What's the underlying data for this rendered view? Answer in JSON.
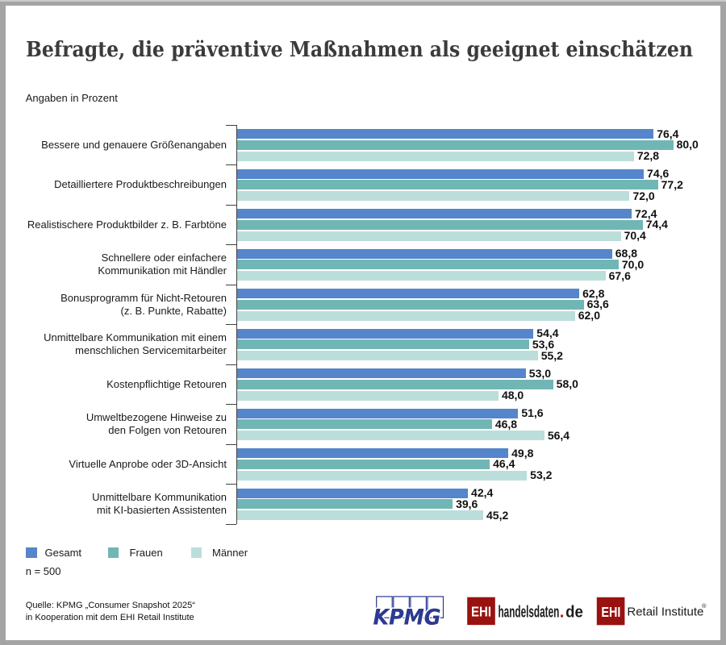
{
  "title": "Befragte, die präventive Maßnahmen als geeignet einschätzen",
  "subtitle": "Angaben in Prozent",
  "n_label": "n = 500",
  "source_line1": "Quelle: KPMG „Consumer Snapshot 2025“",
  "source_line2": "in Kooperation mit dem EHI Retail Institute",
  "colors": {
    "gesamt": "#5585cb",
    "frauen": "#70b6b4",
    "maenner": "#bcdedb",
    "axis": "#404040",
    "title_text": "#3b3b3b",
    "kpmg_blue": "#2a3a8f",
    "ehi_red": "#8e1312",
    "frame_gray": "#a4a4a4"
  },
  "legend": [
    {
      "label": "Gesamt",
      "color": "#5585cb"
    },
    {
      "label": "Frauen",
      "color": "#70b6b4"
    },
    {
      "label": "Männer",
      "color": "#bcdedb"
    }
  ],
  "chart_data": {
    "type": "bar",
    "orientation": "horizontal",
    "unit": "percent",
    "decimal_separator": ",",
    "xlim": [
      0,
      88
    ],
    "series_names": [
      "Gesamt",
      "Frauen",
      "Männer"
    ],
    "categories": [
      "Bessere und genauere Größenangaben",
      "Detailliertere Produktbeschreibungen",
      "Realistischere Produktbilder z. B. Farbtöne",
      "Schnellere oder einfachere\nKommunikation mit Händler",
      "Bonusprogramm für Nicht-Retouren\n(z. B. Punkte, Rabatte)",
      "Unmittelbare Kommunikation mit einem\nmenschlichen Servicemitarbeiter",
      "Kostenpflichtige Retouren",
      "Umweltbezogene Hinweise zu\nden Folgen von Retouren",
      "Virtuelle Anprobe oder 3D-Ansicht",
      "Unmittelbare Kommunikation\nmit KI-basierten Assistenten"
    ],
    "series": [
      {
        "name": "Gesamt",
        "values": [
          76.4,
          74.6,
          72.4,
          68.8,
          62.8,
          54.4,
          53.0,
          51.6,
          49.8,
          42.4
        ]
      },
      {
        "name": "Frauen",
        "values": [
          80.0,
          77.2,
          74.4,
          70.0,
          63.6,
          53.6,
          58.0,
          46.8,
          46.4,
          39.6
        ]
      },
      {
        "name": "Männer",
        "values": [
          72.8,
          72.0,
          70.4,
          67.6,
          62.0,
          55.2,
          48.0,
          56.4,
          53.2,
          45.2
        ]
      }
    ],
    "legend_position": "bottom",
    "grid": false
  },
  "logos": {
    "kpmg": {
      "text": "KPMG"
    },
    "ehi_handelsdaten": {
      "ehi": "EHI",
      "name": "handelsdaten",
      "dot": ".",
      "tld": "de"
    },
    "ehi_retail": {
      "ehi": "EHI",
      "name": "Retail Institute",
      "registered": "®"
    }
  }
}
